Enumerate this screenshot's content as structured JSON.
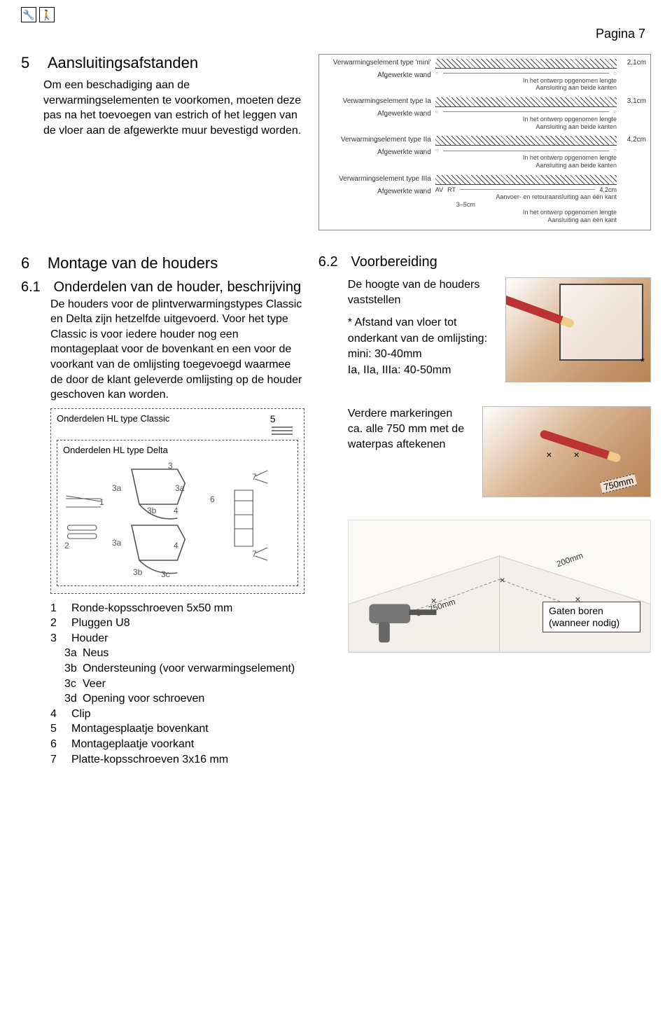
{
  "pageLabel": "Pagina 7",
  "topbar": {
    "wrench": "🔧",
    "person": "🚶"
  },
  "section5": {
    "num": "5",
    "title": "Aansluitingsafstanden",
    "body": "Om een beschadiging aan de verwarmingselementen te voorkomen, moeten deze pas na het toevoegen van estrich of het leggen van de vloer aan de afgewerkte muur bevestigd worden."
  },
  "diagrams": {
    "rows": [
      {
        "typeLabel": "Verwarmingselement type 'mini'",
        "dist": "2,1cm"
      },
      {
        "typeLabel": "Verwarmingselement type Ia",
        "dist": "3,1cm"
      },
      {
        "typeLabel": "Verwarmingselement type IIa",
        "dist": "4,2cm"
      },
      {
        "typeLabel": "Verwarmingselement type IIIa",
        "dist": "4,2cm"
      }
    ],
    "wandLabel": "Afgewerkte wand",
    "lengthLabel": "In het ontwerp opgenomen lengte",
    "aansluitBoth": "Aansluiting aan beide kanten",
    "aansluitOne": "Aansluiting aan één kant",
    "avrt": {
      "av": "AV",
      "rt": "RT",
      "pipe": "Aanvoer- en retouraansluiting aan één kant",
      "gap": "3–5cm"
    }
  },
  "section6": {
    "num": "6",
    "title": "Montage van de houders"
  },
  "section61": {
    "num": "6.1",
    "title": "Onderdelen van de houder, beschrijving",
    "body": "De houders voor de plintverwarmingstypes Classic en Delta zijn hetzelfde uitgevoerd. Voor het type Classic is voor iedere houder nog een montageplaat voor de bovenkant en een voor de voorkant van de omlijsting toegevoegd waarmee de door de klant geleverde omlijsting op de houder geschoven kan worden.",
    "boxOuter": "Onderdelen HL type Classic",
    "boxInner": "Onderdelen HL type Delta",
    "partLabels": {
      "p1": "1",
      "p2": "2",
      "p3": "3",
      "p3a": "3a",
      "p3b": "3b",
      "p3c": "3c",
      "p4": "4",
      "p5": "5",
      "p6": "6",
      "p7": "7"
    },
    "legend": [
      {
        "n": "1",
        "t": "Ronde-kopsschroeven 5x50 mm"
      },
      {
        "n": "2",
        "t": "Pluggen U8"
      },
      {
        "n": "3",
        "t": "Houder"
      },
      {
        "n": "3a",
        "t": "Neus",
        "sub": true
      },
      {
        "n": "3b",
        "t": "Ondersteuning (voor verwarmingselement)",
        "sub": true
      },
      {
        "n": "3c",
        "t": "Veer",
        "sub": true
      },
      {
        "n": "3d",
        "t": "Opening voor schroeven",
        "sub": true
      },
      {
        "n": "4",
        "t": "Clip"
      },
      {
        "n": "5",
        "t": "Montagesplaatje bovenkant"
      },
      {
        "n": "6",
        "t": "Montageplaatje voorkant"
      },
      {
        "n": "7",
        "t": "Platte-kopsschroeven 3x16 mm"
      }
    ]
  },
  "section62": {
    "num": "6.2",
    "title": "Voorbereiding",
    "intro": "De hoogte van de houders vaststellen",
    "bullet": "* Afstand van vloer tot onderkant van de omlijsting:\n  mini: 30-40mm\n  Ia, IIa, IIIa: 40-50mm",
    "star": "*",
    "mark750": "Verdere markeringen ca. alle 750 mm met de waterpas aftekenen",
    "dim750": "750mm",
    "dim200": "200mm",
    "dimca750": "ca. 750mm",
    "drillCallout": "Gaten boren (wanneer nodig)"
  }
}
